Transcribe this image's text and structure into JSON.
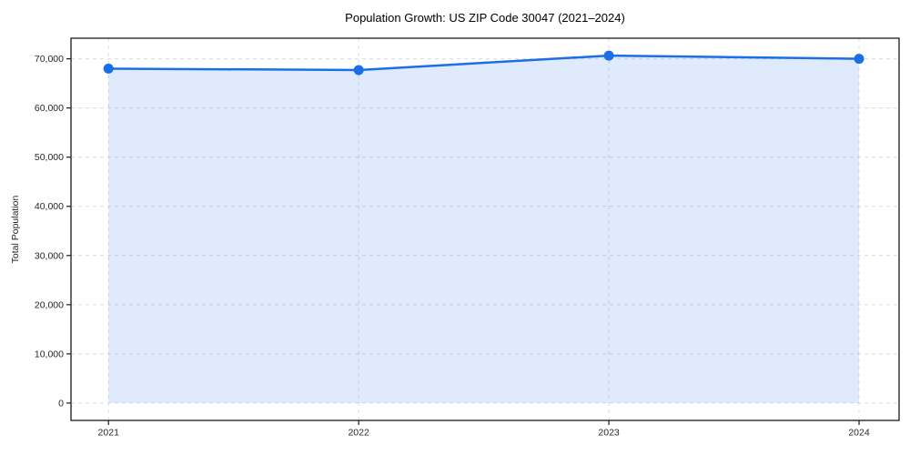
{
  "figure": {
    "background": "#ffffff"
  },
  "chart_data": {
    "type": "line",
    "title": "Population Growth: US ZIP Code 30047 (2021–2024)",
    "xlabel": "",
    "ylabel": "Total Population",
    "x": [
      2021,
      2022,
      2023,
      2024
    ],
    "series": [
      {
        "name": "Total Population",
        "values": [
          68000,
          67700,
          70650,
          70000
        ]
      }
    ],
    "marker": "circle",
    "area_fill_to_zero": true,
    "xlim": [
      2020.85,
      2024.16
    ],
    "ylim": [
      -3532,
      74182
    ],
    "xticks": [
      2021,
      2022,
      2023,
      2024
    ],
    "xtick_labels": [
      "2021",
      "2022",
      "2023",
      "2024"
    ],
    "yticks": [
      0,
      10000,
      20000,
      30000,
      40000,
      50000,
      60000,
      70000
    ],
    "ytick_labels": [
      "0",
      "10,000",
      "20,000",
      "30,000",
      "40,000",
      "50,000",
      "60,000",
      "70,000"
    ],
    "grid": {
      "show": true,
      "style": "dashed",
      "axes": "both"
    },
    "legend": {
      "show": false
    },
    "colors": {
      "line": "#1a6fe8",
      "marker": "#1a6fe8",
      "fill": "rgba(26, 111, 232, 0.14)",
      "grid": "#dcdcdc",
      "spine": "#1a1a1a",
      "title_text": "#000000",
      "tick_text": "#262626",
      "background": "#ffffff"
    }
  }
}
